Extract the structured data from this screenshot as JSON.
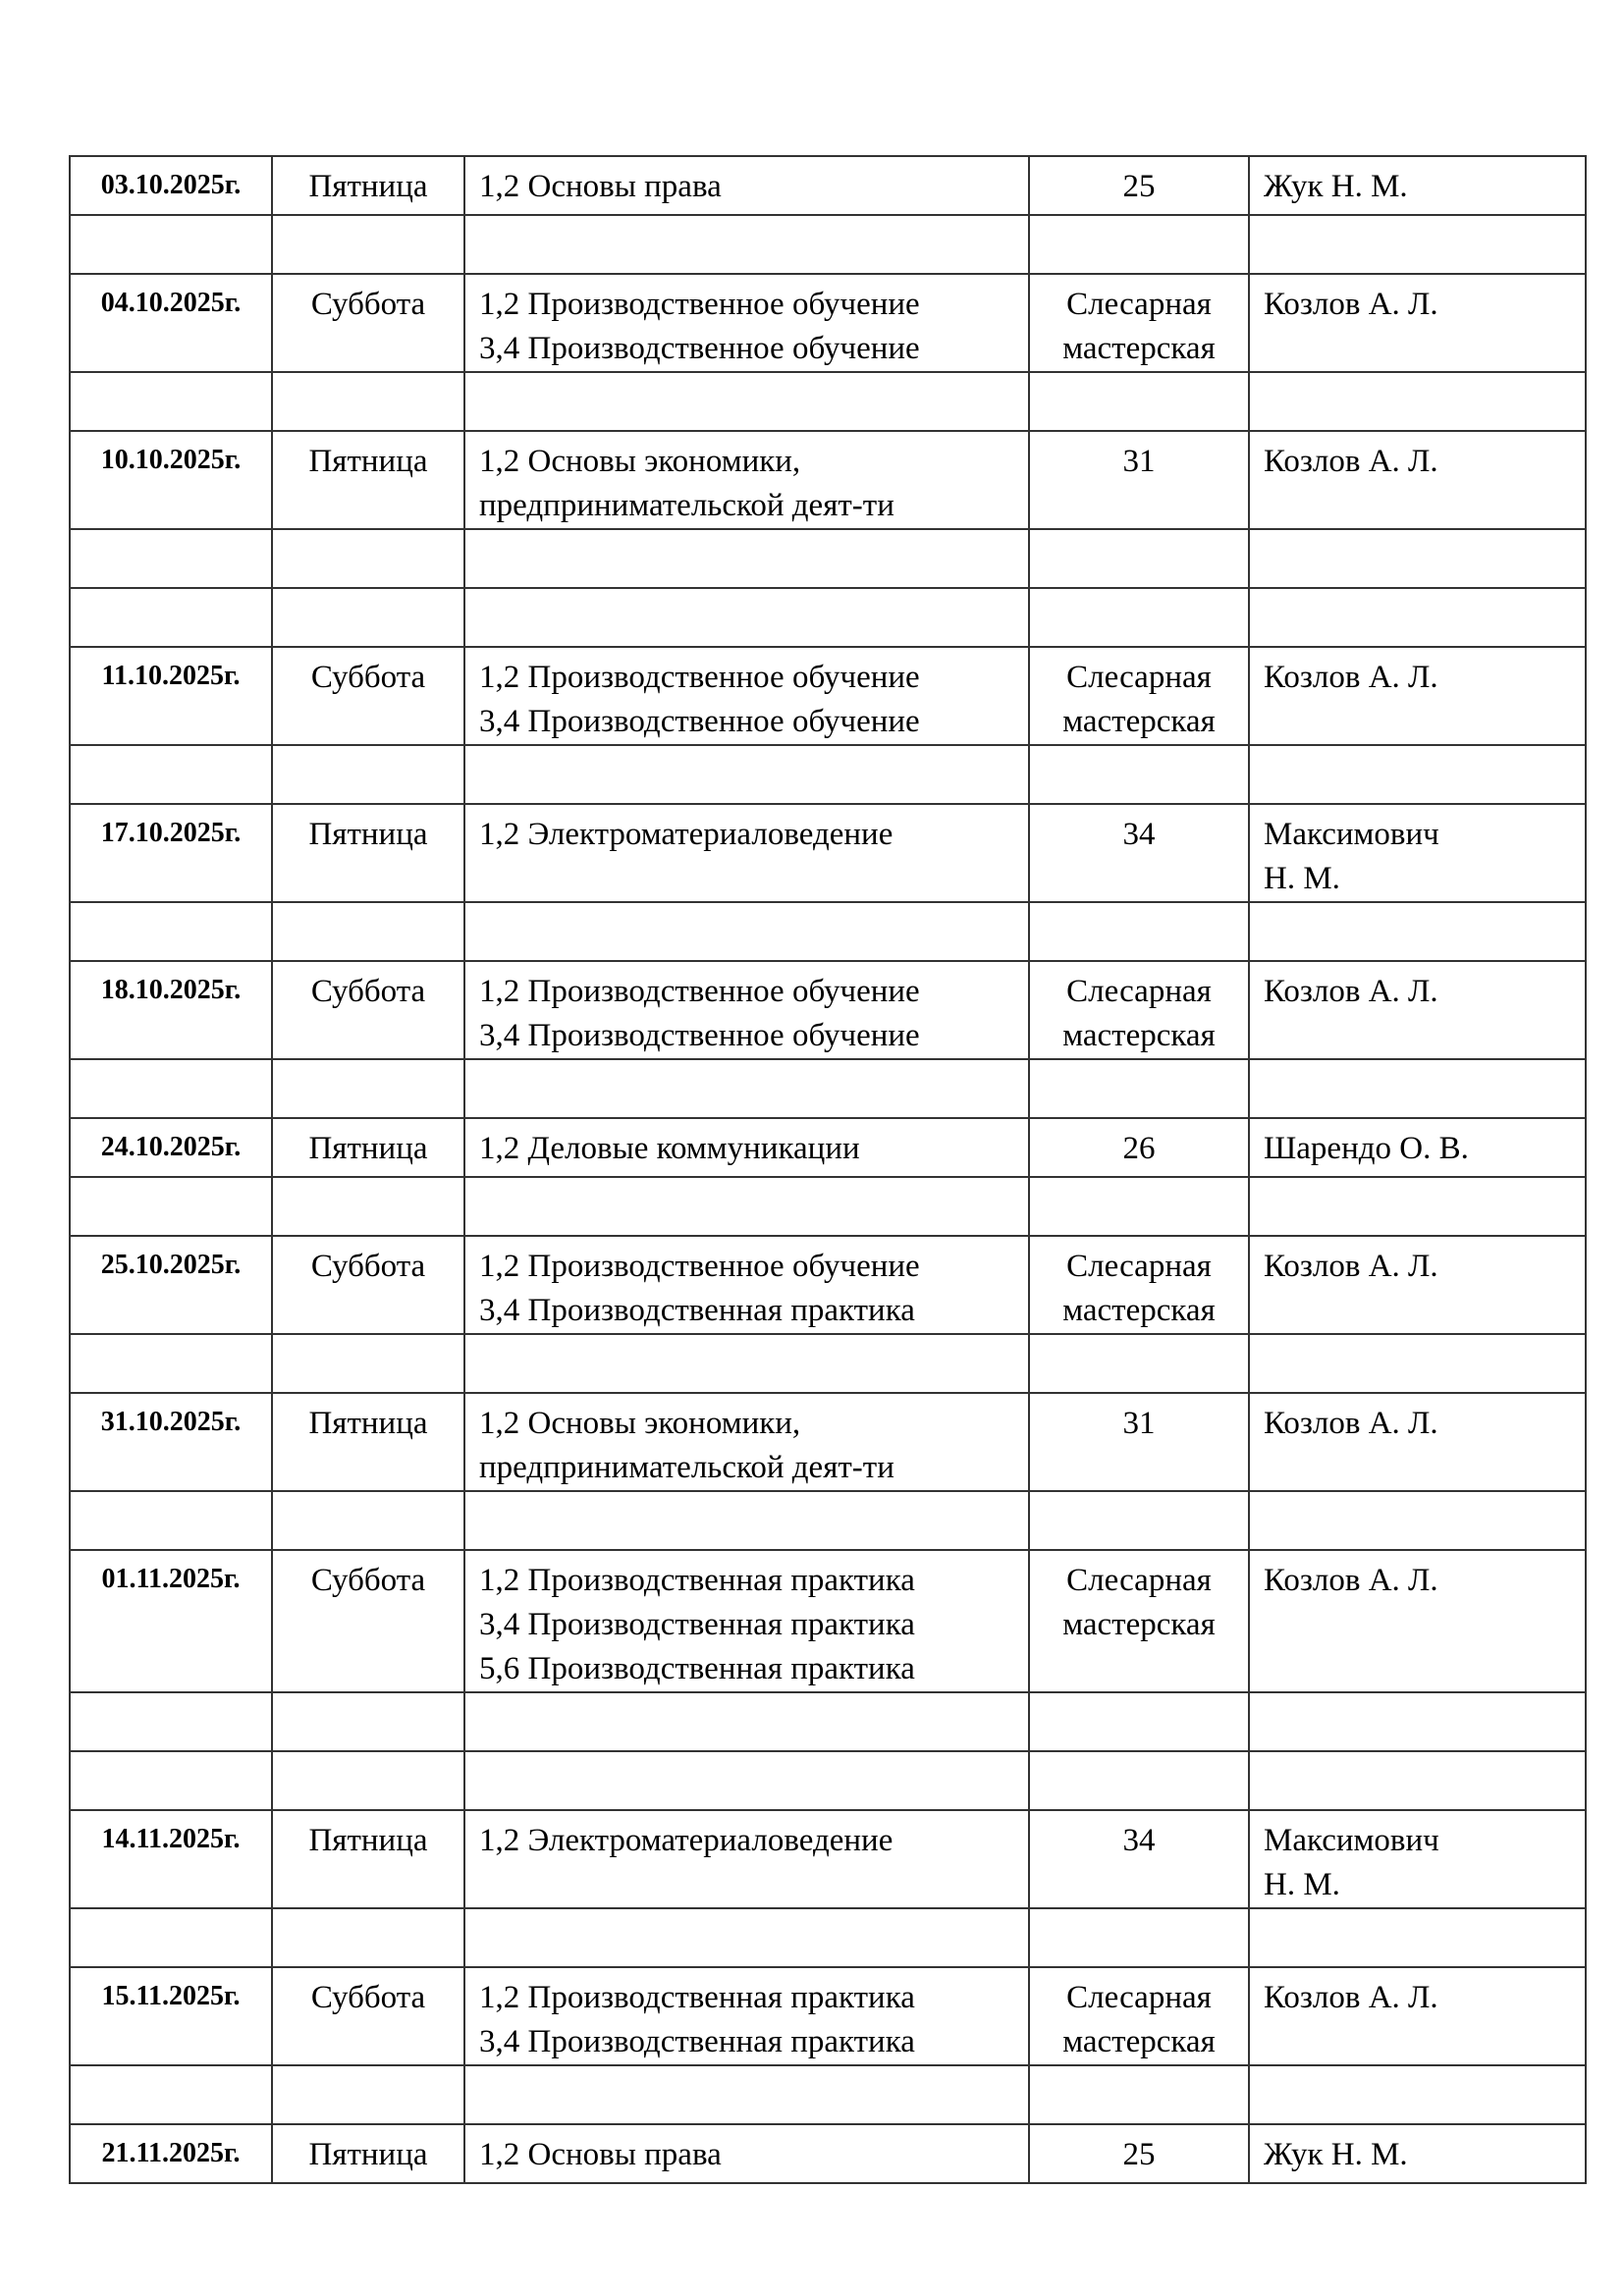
{
  "rows": [
    {
      "date": "03.10.2025г.",
      "day": "Пятница",
      "lessons": [
        "1,2 Основы права"
      ],
      "room": [
        "25"
      ],
      "teacher": [
        "Жук Н. М."
      ]
    },
    {},
    {
      "date": "04.10.2025г.",
      "day": "Суббота",
      "lessons": [
        "1,2 Производственное обучение",
        "3,4 Производственное обучение"
      ],
      "room": [
        "Слесарная",
        "мастерская"
      ],
      "teacher": [
        "Козлов А. Л."
      ]
    },
    {},
    {
      "date": "10.10.2025г.",
      "day": "Пятница",
      "lessons": [
        "1,2 Основы экономики,",
        "предпринимательской деят-ти"
      ],
      "room": [
        "31"
      ],
      "teacher": [
        "Козлов А. Л."
      ]
    },
    {},
    {},
    {
      "date": "11.10.2025г.",
      "day": "Суббота",
      "lessons": [
        "1,2 Производственное обучение",
        "3,4 Производственное обучение"
      ],
      "room": [
        "Слесарная",
        "мастерская"
      ],
      "teacher": [
        "Козлов А. Л."
      ]
    },
    {},
    {
      "date": "17.10.2025г.",
      "day": "Пятница",
      "lessons": [
        "1,2 Электроматериаловедение"
      ],
      "room": [
        "34"
      ],
      "teacher": [
        "Максимович",
        "Н. М."
      ]
    },
    {},
    {
      "date": "18.10.2025г.",
      "day": "Суббота",
      "lessons": [
        "1,2 Производственное обучение",
        "3,4 Производственное обучение"
      ],
      "room": [
        "Слесарная",
        "мастерская"
      ],
      "teacher": [
        "Козлов А. Л."
      ]
    },
    {},
    {
      "date": "24.10.2025г.",
      "day": "Пятница",
      "lessons": [
        "1,2 Деловые коммуникации"
      ],
      "room": [
        "26"
      ],
      "teacher": [
        "Шарендо О. В."
      ]
    },
    {},
    {
      "date": "25.10.2025г.",
      "day": "Суббота",
      "lessons": [
        "1,2 Производственное обучение",
        "3,4 Производственная практика"
      ],
      "room": [
        "Слесарная",
        "мастерская"
      ],
      "teacher": [
        "Козлов А. Л."
      ]
    },
    {},
    {
      "date": "31.10.2025г.",
      "day": "Пятница",
      "lessons": [
        "1,2 Основы экономики,",
        "предпринимательской деят-ти"
      ],
      "room": [
        "31"
      ],
      "teacher": [
        "Козлов А. Л."
      ]
    },
    {},
    {
      "date": "01.11.2025г.",
      "day": "Суббота",
      "lessons": [
        "1,2 Производственная практика",
        "3,4 Производственная практика",
        "5,6 Производственная практика"
      ],
      "room": [
        "Слесарная",
        "мастерская"
      ],
      "teacher": [
        "Козлов А. Л."
      ]
    },
    {},
    {},
    {
      "date": "14.11.2025г.",
      "day": "Пятница",
      "lessons": [
        "1,2 Электроматериаловедение"
      ],
      "room": [
        "34"
      ],
      "teacher": [
        "Максимович",
        "Н. М."
      ]
    },
    {},
    {
      "date": "15.11.2025г.",
      "day": "Суббота",
      "lessons": [
        "1,2 Производственная практика",
        "3,4 Производственная практика"
      ],
      "room": [
        "Слесарная",
        "мастерская"
      ],
      "teacher": [
        "Козлов А. Л."
      ]
    },
    {},
    {
      "date": "21.11.2025г.",
      "day": "Пятница",
      "lessons": [
        "1,2 Основы права"
      ],
      "room": [
        "25"
      ],
      "teacher": [
        "Жук Н. М."
      ]
    }
  ]
}
